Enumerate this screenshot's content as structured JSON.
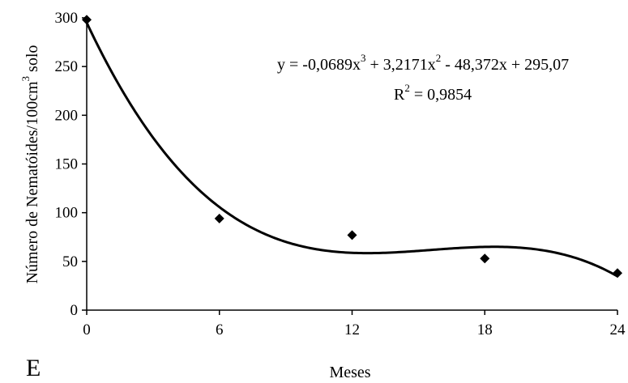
{
  "chart_data": {
    "type": "scatter",
    "title": "",
    "xlabel": "Meses",
    "ylabel_main": "Número de Nematóides/100cm",
    "ylabel_sup": "3",
    "ylabel_tail": " solo",
    "xlim": [
      0,
      24
    ],
    "ylim": [
      0,
      300
    ],
    "x_ticks": [
      0,
      6,
      12,
      18,
      24
    ],
    "y_ticks": [
      0,
      50,
      100,
      150,
      200,
      250,
      300
    ],
    "grid": false,
    "points": [
      {
        "x": 0,
        "y": 298
      },
      {
        "x": 6,
        "y": 94
      },
      {
        "x": 12,
        "y": 77
      },
      {
        "x": 18,
        "y": 53
      },
      {
        "x": 24,
        "y": 38
      }
    ],
    "trendline": {
      "type": "polynomial",
      "coefficients": [
        295.07,
        -48.372,
        3.2171,
        -0.0689
      ]
    },
    "annotation": {
      "eq_part1": "y = -0,0689x",
      "eq_sup1": "3",
      "eq_part2": " + 3,2171x",
      "eq_sup2": "2",
      "eq_part3": " - 48,372x + 295,07",
      "r2_base": "R",
      "r2_sup": "2",
      "r2_value": " = 0,9854"
    },
    "panel_label": "E",
    "colors": {
      "marker": "#000000",
      "line": "#000000",
      "axis": "#000000"
    }
  }
}
